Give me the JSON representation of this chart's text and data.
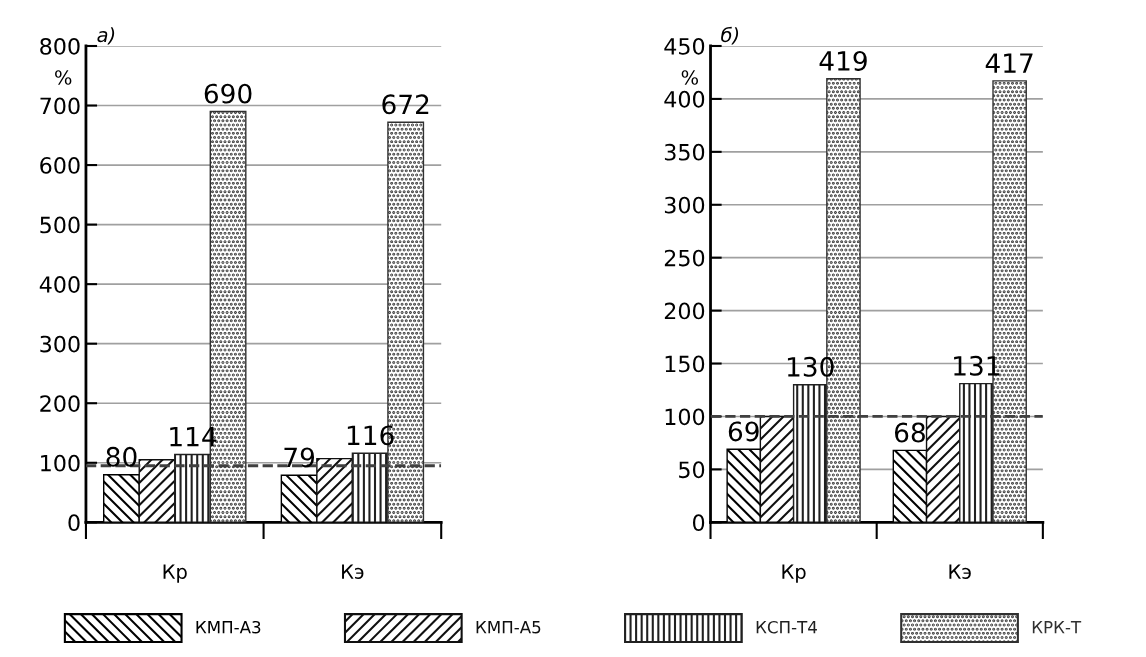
{
  "chart_data": [
    {
      "type": "bar",
      "title": "а)",
      "ylabel": "%",
      "categories": [
        "Кр",
        "Кэ"
      ],
      "ylim": [
        0,
        800
      ],
      "yticks": [
        0,
        100,
        200,
        300,
        400,
        500,
        600,
        700,
        800
      ],
      "grid": "y",
      "legend": "bottom",
      "series": [
        {
          "name": "КМП-А3",
          "color": "#000000",
          "values": [
            80,
            79
          ],
          "value_labels": [
            "80",
            "79"
          ]
        },
        {
          "name": "КМП-А5",
          "color": "#101010",
          "values": [
            105,
            107
          ],
          "value_labels": [
            null,
            null
          ]
        },
        {
          "name": "КСП-Т4",
          "color": "#202020",
          "values": [
            114,
            116
          ],
          "value_labels": [
            "114",
            "116"
          ]
        },
        {
          "name": "КРК-Т",
          "color": "#303030",
          "values": [
            690,
            672
          ],
          "value_labels": [
            "690",
            "672"
          ]
        }
      ],
      "ref_lines": [
        {
          "axis": "y",
          "value": 95,
          "color": "#404040",
          "line_style": "dashed"
        }
      ]
    },
    {
      "type": "bar",
      "title": "б)",
      "ylabel": "%",
      "categories": [
        "Кр",
        "Кэ"
      ],
      "ylim": [
        0,
        450
      ],
      "yticks": [
        0,
        50,
        100,
        150,
        200,
        250,
        300,
        350,
        400,
        450
      ],
      "grid": "y",
      "series": [
        {
          "color": "#000000",
          "values": [
            69,
            68
          ],
          "value_labels": [
            "69",
            "68"
          ]
        },
        {
          "color": "#101010",
          "values": [
            100,
            100
          ],
          "value_labels": [
            null,
            null
          ]
        },
        {
          "color": "#202020",
          "values": [
            130,
            131
          ],
          "value_labels": [
            "130",
            "131"
          ]
        },
        {
          "color": "#303030",
          "values": [
            419,
            417
          ],
          "value_labels": [
            "419",
            "417"
          ]
        }
      ],
      "ref_lines": [
        {
          "axis": "y",
          "value": 100,
          "color": "#404040",
          "line_style": "dashed"
        }
      ]
    }
  ]
}
